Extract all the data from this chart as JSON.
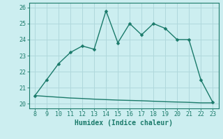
{
  "x": [
    8,
    9,
    10,
    11,
    12,
    13,
    14,
    15,
    16,
    17,
    18,
    19,
    20,
    21,
    22,
    23
  ],
  "y_main": [
    20.5,
    21.5,
    22.5,
    23.2,
    23.6,
    23.4,
    25.8,
    23.8,
    25.0,
    24.3,
    25.0,
    24.7,
    24.0,
    24.0,
    21.5,
    20.1
  ],
  "y_base": [
    20.5,
    20.45,
    20.4,
    20.35,
    20.32,
    20.28,
    20.25,
    20.22,
    20.2,
    20.18,
    20.15,
    20.12,
    20.1,
    20.08,
    20.05,
    20.05
  ],
  "line_color": "#1a7a6a",
  "bg_color": "#cceef0",
  "grid_color": "#b0d8dc",
  "xlabel": "Humidex (Indice chaleur)",
  "ylim": [
    19.7,
    26.3
  ],
  "xlim": [
    7.5,
    23.5
  ],
  "yticks": [
    20,
    21,
    22,
    23,
    24,
    25,
    26
  ],
  "xticks": [
    8,
    9,
    10,
    11,
    12,
    13,
    14,
    15,
    16,
    17,
    18,
    19,
    20,
    21,
    22,
    23
  ],
  "marker_size": 2.5,
  "line_width": 1.0
}
